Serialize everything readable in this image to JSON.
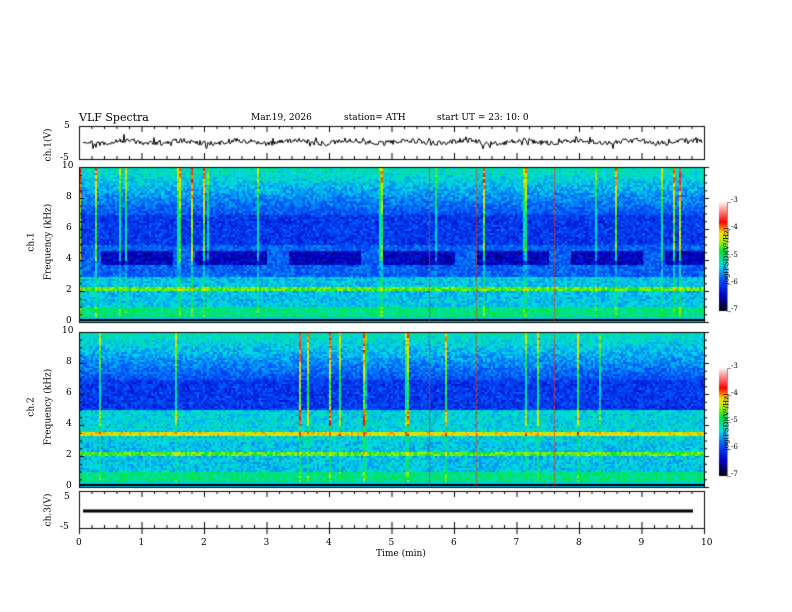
{
  "header": {
    "title": "VLF  Spectra",
    "date": "Mar.19, 2026",
    "station": "station= ATH",
    "start": "start  UT  =   23: 10: 0"
  },
  "chart_data": [
    {
      "type": "line",
      "name": "ch1",
      "ylabel": "ch.1(V)",
      "ylim": [
        -5,
        5
      ],
      "yticks": [
        "5",
        "-5"
      ],
      "description_level": 0
    },
    {
      "type": "heatmap",
      "name": "ch1-spectrogram",
      "ylabel": "ch.1\nFrequency  (kHz)",
      "ylabel_ch": "ch.1",
      "ylabel_f": "Frequency  (kHz)",
      "ylim": [
        0,
        10
      ],
      "yticks": [
        "10",
        "8",
        "6",
        "4",
        "2",
        "0"
      ],
      "colorbar": {
        "label": "log(PSD)(V²/Hz)",
        "range": [
          -7,
          -3
        ],
        "ticks": [
          "-3",
          "-4",
          "-5",
          "-6",
          "-7"
        ]
      }
    },
    {
      "type": "heatmap",
      "name": "ch2-spectrogram",
      "ylabel_ch": "ch.2",
      "ylabel_f": "Frequency  (kHz)",
      "ylim": [
        0,
        10
      ],
      "yticks": [
        "10",
        "8",
        "6",
        "4",
        "2",
        "0"
      ],
      "colorbar": {
        "label": "log(PSD)(V²/Hz)",
        "range": [
          -7,
          -3
        ],
        "ticks": [
          "-3",
          "-4",
          "-5",
          "-6",
          "-7"
        ]
      }
    },
    {
      "type": "line",
      "name": "ch3",
      "ylabel": "ch.3(V)",
      "ylim": [
        -5,
        5
      ],
      "yticks": [
        "5",
        "-5"
      ]
    }
  ],
  "xaxis": {
    "label": "Time  (min)",
    "range": [
      0,
      10
    ],
    "ticks": [
      "0",
      "1",
      "2",
      "3",
      "4",
      "5",
      "6",
      "7",
      "8",
      "9",
      "10"
    ]
  }
}
